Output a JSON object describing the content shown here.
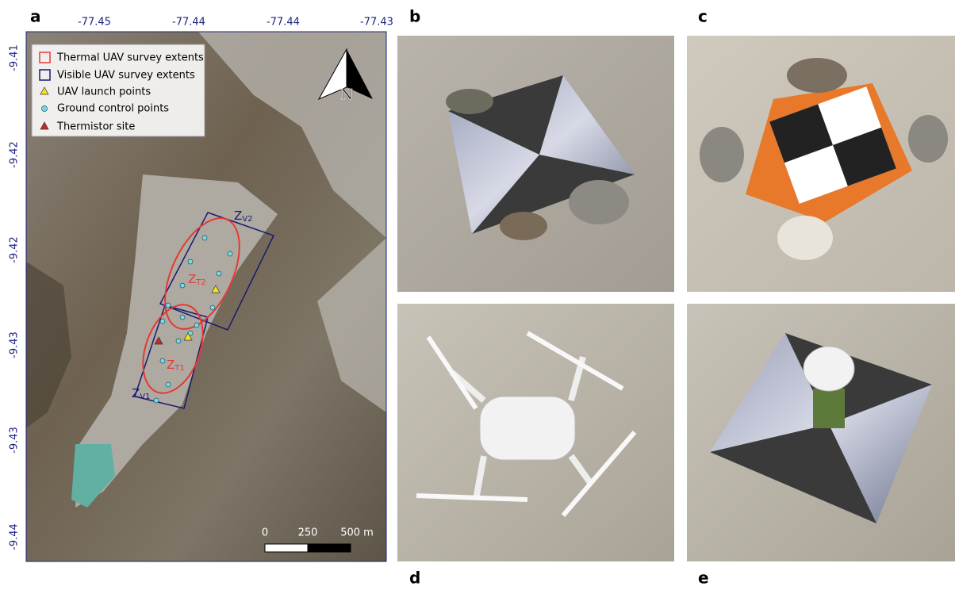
{
  "panels": [
    "a",
    "b",
    "c",
    "d",
    "e"
  ],
  "map": {
    "top_ticks": [
      "-77.45",
      "-77.44",
      "-77.44",
      "-77.43"
    ],
    "left_ticks": [
      "-9.41",
      "-9.42",
      "-9.42",
      "-9.43",
      "-9.43",
      "-9.44"
    ],
    "legend": [
      "Thermal UAV survey extents",
      "Visible UAV survey extents",
      "UAV launch points",
      "Ground control points",
      "Thermistor site"
    ],
    "north": "N",
    "zones": [
      {
        "main": "Z",
        "sub": "V2"
      },
      {
        "main": "Z",
        "sub": "T2"
      },
      {
        "main": "Z",
        "sub": "T1"
      },
      {
        "main": "Z",
        "sub": "V1"
      }
    ],
    "scale_bar": [
      "0",
      "250",
      "500 m"
    ]
  }
}
